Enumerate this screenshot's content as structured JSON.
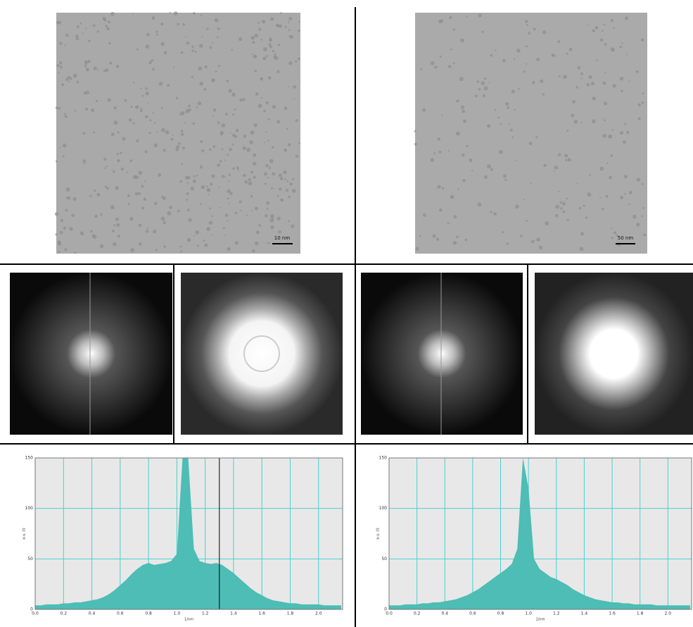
{
  "panels": {
    "scale_bars": [
      "10 nm",
      "50 nm"
    ]
  },
  "chart_data": [
    {
      "type": "area",
      "color": "#4dbdb5",
      "grid": true,
      "x_label": "1/nm",
      "y_label": "a.u. (I)",
      "xlim": [
        0,
        2.17
      ],
      "ylim": [
        0,
        150
      ],
      "xticks": [
        {
          "value": 0,
          "label": "0.0"
        },
        {
          "value": 0.2,
          "label": "0.2"
        },
        {
          "value": 0.4,
          "label": "0.4"
        },
        {
          "value": 0.6,
          "label": "0.6"
        },
        {
          "value": 0.8,
          "label": "0.8"
        },
        {
          "value": 1,
          "label": "1.0"
        },
        {
          "value": 1.2,
          "label": "1.2"
        },
        {
          "value": 1.4,
          "label": "1.4"
        },
        {
          "value": 1.6,
          "label": "1.6"
        },
        {
          "value": 1.8,
          "label": "1.8"
        },
        {
          "value": 2,
          "label": "2.0"
        }
      ],
      "yticks": [
        0,
        50,
        100,
        150
      ],
      "cursor_x": 1.3,
      "x": [
        0,
        0.04,
        0.08,
        0.12,
        0.16,
        0.2,
        0.24,
        0.28,
        0.32,
        0.36,
        0.4,
        0.44,
        0.48,
        0.52,
        0.56,
        0.6,
        0.64,
        0.68,
        0.72,
        0.76,
        0.8,
        0.84,
        0.88,
        0.92,
        0.96,
        1,
        1.04,
        1.08,
        1.12,
        1.16,
        1.2,
        1.24,
        1.28,
        1.32,
        1.36,
        1.4,
        1.44,
        1.48,
        1.52,
        1.56,
        1.6,
        1.64,
        1.68,
        1.72,
        1.76,
        1.8,
        1.84,
        1.88,
        1.92,
        1.96,
        2,
        2.04,
        2.08,
        2.12,
        2.16
      ],
      "values": [
        4,
        4,
        5,
        5,
        5,
        6,
        6,
        7,
        7,
        8,
        9,
        10,
        12,
        15,
        19,
        24,
        29,
        35,
        40,
        44,
        46,
        44,
        45,
        46,
        48,
        55,
        150,
        150,
        60,
        48,
        46,
        45,
        46,
        44,
        40,
        36,
        31,
        26,
        21,
        17,
        14,
        11,
        9,
        8,
        7,
        6,
        6,
        5,
        5,
        5,
        5,
        4,
        4,
        4,
        4
      ]
    },
    {
      "type": "area",
      "color": "#4dbdb5",
      "grid": true,
      "x_label": "1/nm",
      "y_label": "a.u. (I)",
      "xlim": [
        0,
        2.17
      ],
      "ylim": [
        0,
        150
      ],
      "xticks": [
        {
          "value": 0,
          "label": "0.0"
        },
        {
          "value": 0.2,
          "label": "0.2"
        },
        {
          "value": 0.4,
          "label": "0.4"
        },
        {
          "value": 0.6,
          "label": "0.6"
        },
        {
          "value": 0.8,
          "label": "0.8"
        },
        {
          "value": 1,
          "label": "1.0"
        },
        {
          "value": 1.2,
          "label": "1.2"
        },
        {
          "value": 1.4,
          "label": "1.4"
        },
        {
          "value": 1.6,
          "label": "1.6"
        },
        {
          "value": 1.8,
          "label": "1.8"
        },
        {
          "value": 2,
          "label": "2.0"
        }
      ],
      "yticks": [
        0,
        50,
        100,
        150
      ],
      "x": [
        0,
        0.04,
        0.08,
        0.12,
        0.16,
        0.2,
        0.24,
        0.28,
        0.32,
        0.36,
        0.4,
        0.44,
        0.48,
        0.52,
        0.56,
        0.6,
        0.64,
        0.68,
        0.72,
        0.76,
        0.8,
        0.84,
        0.88,
        0.92,
        0.96,
        1,
        1.04,
        1.08,
        1.12,
        1.16,
        1.2,
        1.24,
        1.28,
        1.32,
        1.36,
        1.4,
        1.44,
        1.48,
        1.52,
        1.56,
        1.6,
        1.64,
        1.68,
        1.72,
        1.76,
        1.8,
        1.84,
        1.88,
        1.92,
        1.96,
        2,
        2.04,
        2.08,
        2.12,
        2.16
      ],
      "values": [
        4,
        4,
        4,
        5,
        5,
        5,
        6,
        6,
        7,
        7,
        8,
        9,
        10,
        12,
        14,
        17,
        20,
        24,
        28,
        32,
        36,
        40,
        45,
        60,
        150,
        120,
        50,
        40,
        36,
        32,
        30,
        27,
        24,
        20,
        17,
        14,
        12,
        10,
        9,
        8,
        7,
        7,
        6,
        6,
        5,
        5,
        5,
        5,
        4,
        4,
        4,
        4,
        4,
        4,
        4
      ]
    }
  ]
}
